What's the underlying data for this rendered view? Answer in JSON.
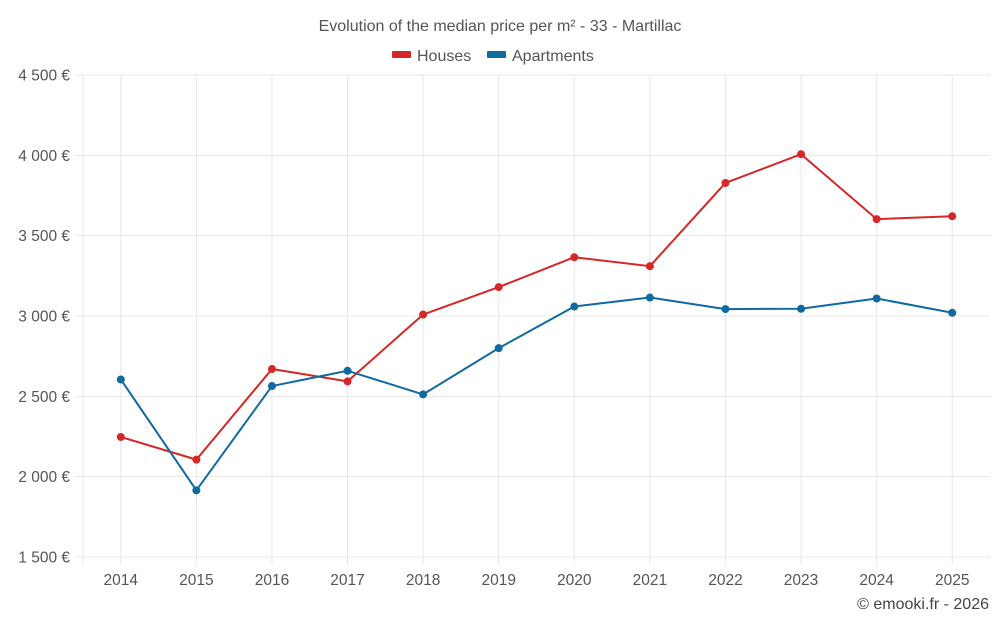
{
  "chart_data": {
    "type": "line",
    "title": "Evolution of the median price per m² - 33 - Martillac",
    "xlabel": "",
    "ylabel": "",
    "categories": [
      "2014",
      "2015",
      "2016",
      "2017",
      "2018",
      "2019",
      "2020",
      "2021",
      "2022",
      "2023",
      "2024",
      "2025"
    ],
    "series": [
      {
        "name": "Houses",
        "color": "#d62728",
        "values": [
          2247,
          2106,
          2670,
          2593,
          3009,
          3180,
          3366,
          3310,
          3828,
          4007,
          3603,
          3621
        ]
      },
      {
        "name": "Apartments",
        "color": "#0f6aa0",
        "values": [
          2605,
          1915,
          2564,
          2659,
          2512,
          2800,
          3059,
          3115,
          3043,
          3045,
          3109,
          3020
        ]
      }
    ],
    "ylim": [
      1500,
      4500
    ],
    "yticks": [
      1500,
      2000,
      2500,
      3000,
      3500,
      4000,
      4500
    ],
    "ytick_labels": [
      "1 500 €",
      "2 000 €",
      "2 500 €",
      "3 000 €",
      "3 500 €",
      "4 000 €",
      "4 500 €"
    ],
    "grid": true,
    "legend_position": "top-center"
  },
  "credit": "© emooki.fr - 2026"
}
